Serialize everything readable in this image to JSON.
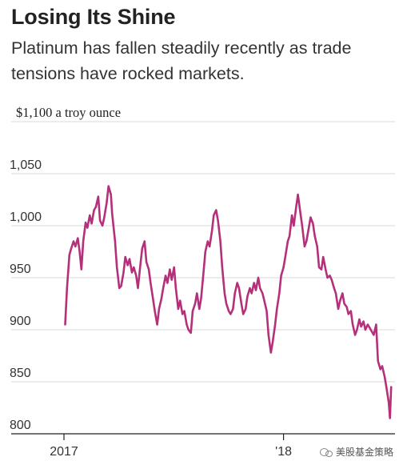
{
  "header": {
    "title": "Losing Its Shine",
    "subtitle": "Platinum has fallen steadily recently as trade tensions have rocked markets."
  },
  "watermark": "美股基金策略",
  "chart_data": {
    "type": "line",
    "title": "Losing Its Shine",
    "subtitle": "Platinum has fallen steadily recently as trade tensions have rocked markets.",
    "ylabel": "$1,100 a troy ounce",
    "xlabel": "",
    "ylim": [
      800,
      1100
    ],
    "yticks": [
      800,
      850,
      900,
      950,
      1000,
      1050,
      1100
    ],
    "ytick_labels": [
      "800",
      "850",
      "900",
      "950",
      "1,000",
      "1,050"
    ],
    "xlim": [
      "2017-01-01",
      "2018-06-30"
    ],
    "xticks": [
      {
        "date": "2017-01-01",
        "label": "2017"
      },
      {
        "date": "2018-01-01",
        "label": "'18"
      }
    ],
    "grid": "horizontal",
    "line_color": "#b5307a",
    "series": [
      {
        "name": "",
        "points": [
          [
            "2017-01-03",
            905
          ],
          [
            "2017-01-06",
            940
          ],
          [
            "2017-01-10",
            972
          ],
          [
            "2017-01-13",
            978
          ],
          [
            "2017-01-17",
            985
          ],
          [
            "2017-01-20",
            980
          ],
          [
            "2017-01-24",
            988
          ],
          [
            "2017-01-27",
            975
          ],
          [
            "2017-01-30",
            958
          ],
          [
            "2017-02-02",
            985
          ],
          [
            "2017-02-06",
            1003
          ],
          [
            "2017-02-09",
            998
          ],
          [
            "2017-02-13",
            1010
          ],
          [
            "2017-02-16",
            1002
          ],
          [
            "2017-02-20",
            1015
          ],
          [
            "2017-02-23",
            1018
          ],
          [
            "2017-02-27",
            1028
          ],
          [
            "2017-03-02",
            1005
          ],
          [
            "2017-03-06",
            1000
          ],
          [
            "2017-03-09",
            1008
          ],
          [
            "2017-03-13",
            1022
          ],
          [
            "2017-03-16",
            1038
          ],
          [
            "2017-03-20",
            1030
          ],
          [
            "2017-03-22",
            1012
          ],
          [
            "2017-03-27",
            985
          ],
          [
            "2017-03-30",
            960
          ],
          [
            "2017-04-03",
            940
          ],
          [
            "2017-04-06",
            942
          ],
          [
            "2017-04-10",
            955
          ],
          [
            "2017-04-13",
            970
          ],
          [
            "2017-04-17",
            962
          ],
          [
            "2017-04-20",
            968
          ],
          [
            "2017-04-24",
            955
          ],
          [
            "2017-04-27",
            960
          ],
          [
            "2017-05-01",
            952
          ],
          [
            "2017-05-04",
            940
          ],
          [
            "2017-05-08",
            962
          ],
          [
            "2017-05-11",
            978
          ],
          [
            "2017-05-15",
            985
          ],
          [
            "2017-05-18",
            965
          ],
          [
            "2017-05-22",
            958
          ],
          [
            "2017-05-25",
            945
          ],
          [
            "2017-05-29",
            930
          ],
          [
            "2017-06-01",
            918
          ],
          [
            "2017-06-05",
            905
          ],
          [
            "2017-06-08",
            920
          ],
          [
            "2017-06-12",
            930
          ],
          [
            "2017-06-15",
            940
          ],
          [
            "2017-06-19",
            952
          ],
          [
            "2017-06-22",
            945
          ],
          [
            "2017-06-26",
            958
          ],
          [
            "2017-06-29",
            948
          ],
          [
            "2017-07-03",
            960
          ],
          [
            "2017-07-06",
            940
          ],
          [
            "2017-07-10",
            920
          ],
          [
            "2017-07-13",
            928
          ],
          [
            "2017-07-17",
            915
          ],
          [
            "2017-07-20",
            918
          ],
          [
            "2017-07-24",
            905
          ],
          [
            "2017-07-27",
            900
          ],
          [
            "2017-07-31",
            897
          ],
          [
            "2017-08-03",
            918
          ],
          [
            "2017-08-07",
            925
          ],
          [
            "2017-08-10",
            935
          ],
          [
            "2017-08-14",
            920
          ],
          [
            "2017-08-17",
            930
          ],
          [
            "2017-08-21",
            955
          ],
          [
            "2017-08-24",
            975
          ],
          [
            "2017-08-28",
            985
          ],
          [
            "2017-08-31",
            980
          ],
          [
            "2017-09-04",
            995
          ],
          [
            "2017-09-07",
            1010
          ],
          [
            "2017-09-11",
            1015
          ],
          [
            "2017-09-14",
            1005
          ],
          [
            "2017-09-18",
            985
          ],
          [
            "2017-09-21",
            960
          ],
          [
            "2017-09-25",
            935
          ],
          [
            "2017-09-28",
            925
          ],
          [
            "2017-10-02",
            918
          ],
          [
            "2017-10-05",
            915
          ],
          [
            "2017-10-09",
            920
          ],
          [
            "2017-10-12",
            935
          ],
          [
            "2017-10-16",
            945
          ],
          [
            "2017-10-19",
            940
          ],
          [
            "2017-10-23",
            925
          ],
          [
            "2017-10-26",
            915
          ],
          [
            "2017-10-30",
            920
          ],
          [
            "2017-11-02",
            932
          ],
          [
            "2017-11-06",
            940
          ],
          [
            "2017-11-09",
            935
          ],
          [
            "2017-11-13",
            945
          ],
          [
            "2017-11-16",
            938
          ],
          [
            "2017-11-20",
            950
          ],
          [
            "2017-11-23",
            940
          ],
          [
            "2017-11-27",
            935
          ],
          [
            "2017-11-30",
            928
          ],
          [
            "2017-12-04",
            918
          ],
          [
            "2017-12-07",
            895
          ],
          [
            "2017-12-11",
            878
          ],
          [
            "2017-12-14",
            888
          ],
          [
            "2017-12-18",
            905
          ],
          [
            "2017-12-21",
            920
          ],
          [
            "2017-12-25",
            935
          ],
          [
            "2017-12-28",
            952
          ],
          [
            "2018-01-01",
            960
          ],
          [
            "2018-01-04",
            970
          ],
          [
            "2018-01-08",
            985
          ],
          [
            "2018-01-11",
            990
          ],
          [
            "2018-01-15",
            1010
          ],
          [
            "2018-01-18",
            1000
          ],
          [
            "2018-01-22",
            1018
          ],
          [
            "2018-01-25",
            1030
          ],
          [
            "2018-01-29",
            1012
          ],
          [
            "2018-02-01",
            1000
          ],
          [
            "2018-02-05",
            980
          ],
          [
            "2018-02-08",
            985
          ],
          [
            "2018-02-12",
            998
          ],
          [
            "2018-02-15",
            1008
          ],
          [
            "2018-02-19",
            1002
          ],
          [
            "2018-02-22",
            990
          ],
          [
            "2018-02-26",
            980
          ],
          [
            "2018-03-01",
            960
          ],
          [
            "2018-03-05",
            958
          ],
          [
            "2018-03-08",
            970
          ],
          [
            "2018-03-12",
            958
          ],
          [
            "2018-03-15",
            950
          ],
          [
            "2018-03-19",
            952
          ],
          [
            "2018-03-22",
            948
          ],
          [
            "2018-03-26",
            940
          ],
          [
            "2018-03-29",
            935
          ],
          [
            "2018-04-02",
            920
          ],
          [
            "2018-04-05",
            928
          ],
          [
            "2018-04-09",
            935
          ],
          [
            "2018-04-12",
            925
          ],
          [
            "2018-04-16",
            922
          ],
          [
            "2018-04-19",
            915
          ],
          [
            "2018-04-23",
            918
          ],
          [
            "2018-04-26",
            905
          ],
          [
            "2018-04-30",
            895
          ],
          [
            "2018-05-03",
            900
          ],
          [
            "2018-05-07",
            910
          ],
          [
            "2018-05-10",
            903
          ],
          [
            "2018-05-14",
            908
          ],
          [
            "2018-05-17",
            900
          ],
          [
            "2018-05-21",
            905
          ],
          [
            "2018-05-24",
            902
          ],
          [
            "2018-05-28",
            898
          ],
          [
            "2018-05-31",
            895
          ],
          [
            "2018-06-04",
            905
          ],
          [
            "2018-06-07",
            870
          ],
          [
            "2018-06-11",
            862
          ],
          [
            "2018-06-14",
            865
          ],
          [
            "2018-06-18",
            855
          ],
          [
            "2018-06-21",
            845
          ],
          [
            "2018-06-25",
            830
          ],
          [
            "2018-06-27",
            815
          ],
          [
            "2018-06-29",
            845
          ]
        ]
      }
    ]
  }
}
